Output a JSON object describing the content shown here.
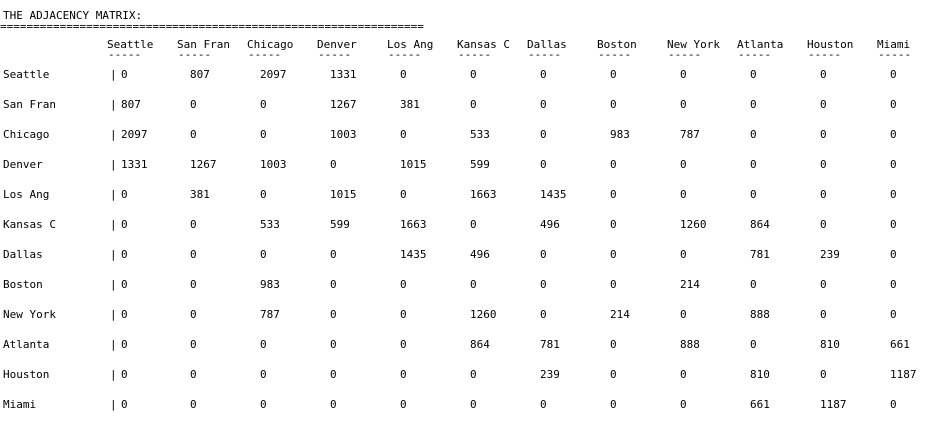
{
  "title": "THE ADJACENCY MATRIX:",
  "separator": "================================================================",
  "dash": "-----",
  "bar": "|",
  "columns": [
    "Seattle",
    "San Fran",
    "Chicago",
    "Denver",
    "Los Ang",
    "Kansas C",
    "Dallas",
    "Boston",
    "New York",
    "Atlanta",
    "Houston",
    "Miami"
  ],
  "rows": [
    {
      "label": "Seattle",
      "values": [
        "0",
        "807",
        "2097",
        "1331",
        "0",
        "0",
        "0",
        "0",
        "0",
        "0",
        "0",
        "0"
      ]
    },
    {
      "label": "San Fran",
      "values": [
        "807",
        "0",
        "0",
        "1267",
        "381",
        "0",
        "0",
        "0",
        "0",
        "0",
        "0",
        "0"
      ]
    },
    {
      "label": "Chicago",
      "values": [
        "2097",
        "0",
        "0",
        "1003",
        "0",
        "533",
        "0",
        "983",
        "787",
        "0",
        "0",
        "0"
      ]
    },
    {
      "label": "Denver",
      "values": [
        "1331",
        "1267",
        "1003",
        "0",
        "1015",
        "599",
        "0",
        "0",
        "0",
        "0",
        "0",
        "0"
      ]
    },
    {
      "label": "Los Ang",
      "values": [
        "0",
        "381",
        "0",
        "1015",
        "0",
        "1663",
        "1435",
        "0",
        "0",
        "0",
        "0",
        "0"
      ]
    },
    {
      "label": "Kansas C",
      "values": [
        "0",
        "0",
        "533",
        "599",
        "1663",
        "0",
        "496",
        "0",
        "1260",
        "864",
        "0",
        "0"
      ]
    },
    {
      "label": "Dallas",
      "values": [
        "0",
        "0",
        "0",
        "0",
        "1435",
        "496",
        "0",
        "0",
        "0",
        "781",
        "239",
        "0"
      ]
    },
    {
      "label": "Boston",
      "values": [
        "0",
        "0",
        "983",
        "0",
        "0",
        "0",
        "0",
        "0",
        "214",
        "0",
        "0",
        "0"
      ]
    },
    {
      "label": "New York",
      "values": [
        "0",
        "0",
        "787",
        "0",
        "0",
        "1260",
        "0",
        "214",
        "0",
        "888",
        "0",
        "0"
      ]
    },
    {
      "label": "Atlanta",
      "values": [
        "0",
        "0",
        "0",
        "0",
        "0",
        "864",
        "781",
        "0",
        "888",
        "0",
        "810",
        "661"
      ]
    },
    {
      "label": "Houston",
      "values": [
        "0",
        "0",
        "0",
        "0",
        "0",
        "0",
        "239",
        "0",
        "0",
        "810",
        "0",
        "1187"
      ]
    },
    {
      "label": "Miami",
      "values": [
        "0",
        "0",
        "0",
        "0",
        "0",
        "0",
        "0",
        "0",
        "0",
        "661",
        "1187",
        "0"
      ]
    }
  ]
}
